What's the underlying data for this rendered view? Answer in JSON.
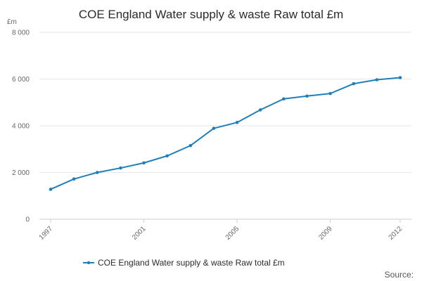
{
  "chart_data": {
    "type": "line",
    "title": "COE England Water supply & waste Raw total £m",
    "unit_label": "£m",
    "x": [
      1997,
      1998,
      1999,
      2000,
      2001,
      2002,
      2003,
      2004,
      2005,
      2006,
      2007,
      2008,
      2009,
      2010,
      2011,
      2012
    ],
    "x_tick_labels": [
      "1997",
      "2001",
      "2005",
      "2009",
      "2012"
    ],
    "y_tick_labels": [
      "0",
      "2 000",
      "4 000",
      "6 000",
      "8 000"
    ],
    "y_ticks": [
      0,
      2000,
      4000,
      6000,
      8000
    ],
    "ylim": [
      0,
      8000
    ],
    "xlim": [
      1997,
      2012
    ],
    "series": [
      {
        "name": "COE England Water supply & waste Raw total £m",
        "color": "#1f7fb9",
        "values": [
          1280,
          1720,
          2000,
          2190,
          2410,
          2710,
          3150,
          3890,
          4140,
          4680,
          5150,
          5270,
          5380,
          5800,
          5970,
          6060
        ]
      }
    ],
    "grid": true,
    "legend_position": "bottom"
  },
  "footer": {
    "source_label": "Source:"
  }
}
